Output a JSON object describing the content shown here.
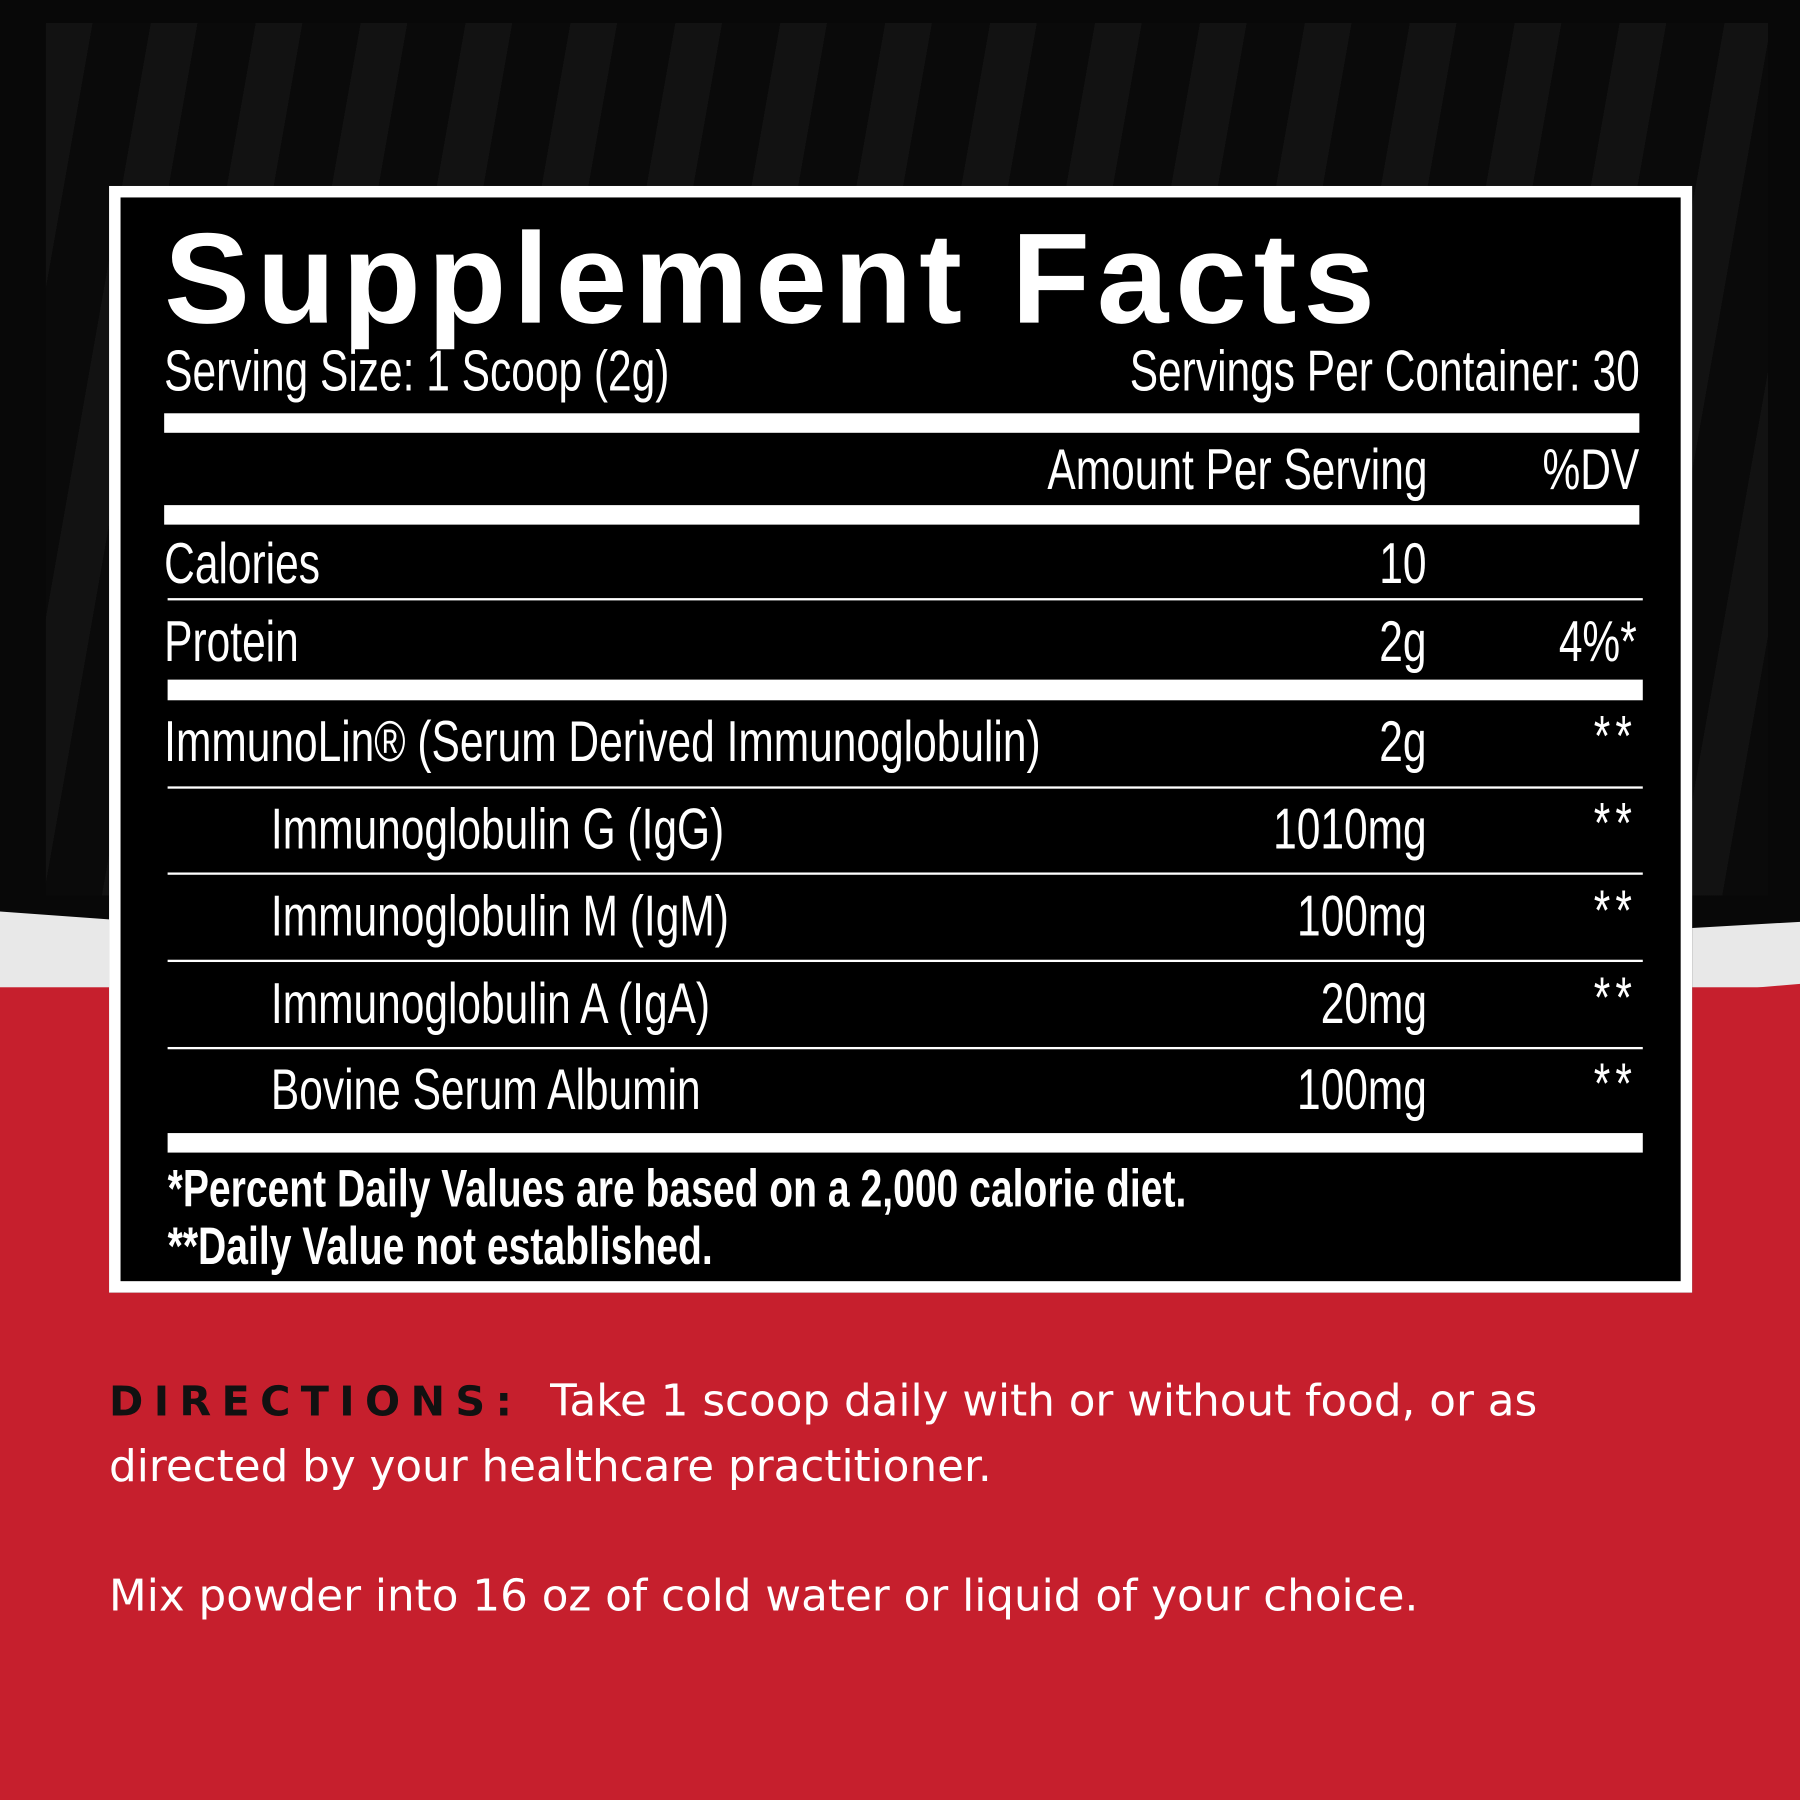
{
  "title": "Supplement Facts",
  "serving_size": "Serving Size: 1 Scoop (2g)",
  "servings_per_container": "Servings Per Container: 30",
  "header": {
    "amount": "Amount Per Serving",
    "dv": "%DV"
  },
  "rows": [
    {
      "name": "Calories",
      "amount": "10",
      "dv": ""
    },
    {
      "name": "Protein",
      "amount": "2g",
      "dv": "4%*"
    },
    {
      "name": "ImmunoLin® (Serum Derived Immunoglobulin)",
      "amount": "2g",
      "dv": "**"
    },
    {
      "name": "Immunoglobulin G (IgG)",
      "amount": "1010mg",
      "dv": "**"
    },
    {
      "name": "Immunoglobulin M (IgM)",
      "amount": "100mg",
      "dv": "**"
    },
    {
      "name": "Immunoglobulin A (IgA)",
      "amount": "20mg",
      "dv": "**"
    },
    {
      "name": "Bovine Serum Albumin",
      "amount": "100mg",
      "dv": "**"
    }
  ],
  "footnotes": [
    "*Percent Daily Values are based on a 2,000 calorie diet.",
    "**Daily Value not established."
  ],
  "directions": {
    "label": "DIRECTIONS:",
    "line1": "Take 1 scoop daily with or without food, or as",
    "line2": "directed by your healthcare practitioner.",
    "mix": "Mix powder into 16 oz of cold water or liquid of your choice."
  },
  "colors": {
    "background_top": "#080808",
    "background_bottom": "#c61f2d",
    "panel": "#000000",
    "text": "#ffffff"
  }
}
